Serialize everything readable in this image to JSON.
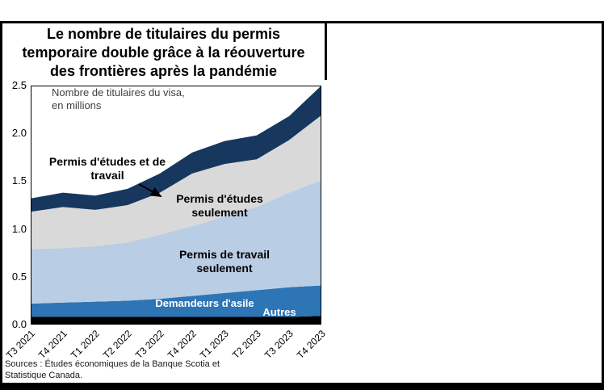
{
  "title_lines": [
    "Le nombre de titulaires du permis",
    "temporaire double grâce à la réouverture",
    "des frontières après la pandémie"
  ],
  "axis_note_lines": [
    "Nombre de titulaires du visa,",
    "en millions"
  ],
  "source_lines": [
    "Sources : Études économiques de la Banque Scotia et",
    "Statistique Canada."
  ],
  "chart_data": {
    "type": "area",
    "stacked": true,
    "title": "Le nombre de titulaires du permis temporaire double grâce à la réouverture des frontières après la pandémie",
    "units_note": "Nombre de titulaires du visa, en millions",
    "source": "Sources : Études économiques de la Banque Scotia et Statistique Canada.",
    "categories": [
      "T3 2021",
      "T4 2021",
      "T1 2022",
      "T2 2022",
      "T3 2022",
      "T4 2022",
      "T1 2023",
      "T2 2023",
      "T3 2023",
      "T4 2023"
    ],
    "ylim": [
      0,
      2.5
    ],
    "yticks": [
      0.0,
      0.5,
      1.0,
      1.5,
      2.0,
      2.5
    ],
    "grid": false,
    "legend_position": "labels-in-plot",
    "series": [
      {
        "name": "Autres",
        "color": "#000000",
        "label_color": "#ffffff",
        "values": [
          0.08,
          0.08,
          0.08,
          0.08,
          0.08,
          0.08,
          0.08,
          0.08,
          0.08,
          0.09
        ]
      },
      {
        "name": "Demandeurs d'asile",
        "color": "#2e75b6",
        "label_color": "#ffffff",
        "values": [
          0.14,
          0.15,
          0.16,
          0.17,
          0.19,
          0.22,
          0.25,
          0.28,
          0.31,
          0.32
        ]
      },
      {
        "name": "Permis de travail seulement",
        "color": "#b9cde5",
        "label_color": "#000000",
        "values": [
          0.57,
          0.57,
          0.58,
          0.61,
          0.67,
          0.73,
          0.8,
          0.87,
          0.99,
          1.1
        ]
      },
      {
        "name": "Permis d'études seulement",
        "color": "#d9d9d9",
        "label_color": "#000000",
        "values": [
          0.39,
          0.43,
          0.38,
          0.39,
          0.44,
          0.55,
          0.55,
          0.5,
          0.55,
          0.68
        ]
      },
      {
        "name": "Permis d'études et de travail",
        "color": "#17375e",
        "label_color": "#000000",
        "values": [
          0.14,
          0.15,
          0.15,
          0.17,
          0.2,
          0.22,
          0.24,
          0.25,
          0.25,
          0.31
        ]
      }
    ]
  }
}
